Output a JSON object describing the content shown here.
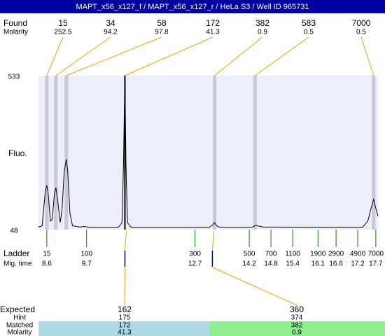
{
  "title": "MAPT_x56_x127_f / MAPT_x56_x127_r / HeLa S3 / Well ID 965731",
  "chart_data": {
    "type": "electropherogram",
    "y_label": "Fluo.",
    "ylim": [
      48,
      533
    ],
    "yticks": [
      48,
      533
    ],
    "xlim": [
      8.37,
      17.76
    ],
    "background": "#eeeefa",
    "trace": {
      "color": "#000000",
      "x": [
        8.37,
        8.47,
        8.52,
        8.56,
        8.6,
        8.64,
        8.7,
        8.75,
        8.81,
        8.85,
        8.89,
        8.97,
        9.02,
        9.08,
        9.14,
        9.18,
        9.24,
        9.31,
        9.52,
        9.62,
        9.81,
        10.58,
        10.68,
        10.72,
        10.76,
        10.79,
        10.83,
        10.93,
        13.09,
        13.18,
        13.24,
        13.3,
        13.39,
        14.28,
        14.36,
        14.43,
        14.59,
        17.33,
        17.48,
        17.58,
        17.64,
        17.7,
        17.76
      ],
      "values": [
        56,
        60,
        120,
        170,
        187,
        160,
        75,
        80,
        160,
        180,
        150,
        70,
        110,
        230,
        270,
        230,
        100,
        60,
        56,
        58,
        55,
        55,
        70,
        250,
        533,
        250,
        70,
        55,
        55,
        62,
        70,
        60,
        55,
        55,
        61,
        60,
        56,
        55,
        75,
        120,
        143,
        115,
        90
      ]
    },
    "found": {
      "label": "Found",
      "molarity_label": "Molarity",
      "sizes": [
        15,
        34,
        58,
        172,
        382,
        583,
        7000
      ],
      "molarity": [
        252.5,
        94.2,
        97.8,
        41.3,
        0.9,
        0.5,
        0.5
      ],
      "x": [
        8.6,
        8.85,
        9.14,
        10.76,
        13.24,
        14.36,
        17.64
      ],
      "band_colors": [
        "#c8c8d8",
        "#c8c8d8",
        "#c8c8d8",
        "#000000",
        "#c8c8d8",
        "#c8c8d8",
        "#c8c8d8"
      ],
      "leader_color": "#f0a000"
    },
    "ladder": {
      "label": "Ladder",
      "time_label": "Mig. time",
      "sizes": [
        15,
        100,
        300,
        500,
        700,
        1100,
        1900,
        2900,
        4900,
        7000
      ],
      "x": [
        8.6,
        9.7,
        12.7,
        14.2,
        14.8,
        15.4,
        16.1,
        16.6,
        17.2,
        17.7
      ],
      "color": "#008000"
    },
    "expected": {
      "label": "Expected",
      "hint_label": "Hint",
      "matched_label": "Matched",
      "molarity_label": "Molarity",
      "sizes": [
        162,
        360
      ],
      "hints": [
        175,
        374
      ],
      "matched": [
        172,
        382
      ],
      "molarity": [
        41.3,
        0.9
      ],
      "x": [
        10.76,
        13.18
      ],
      "colors": [
        "#add8e6",
        "#90ee90"
      ]
    }
  }
}
